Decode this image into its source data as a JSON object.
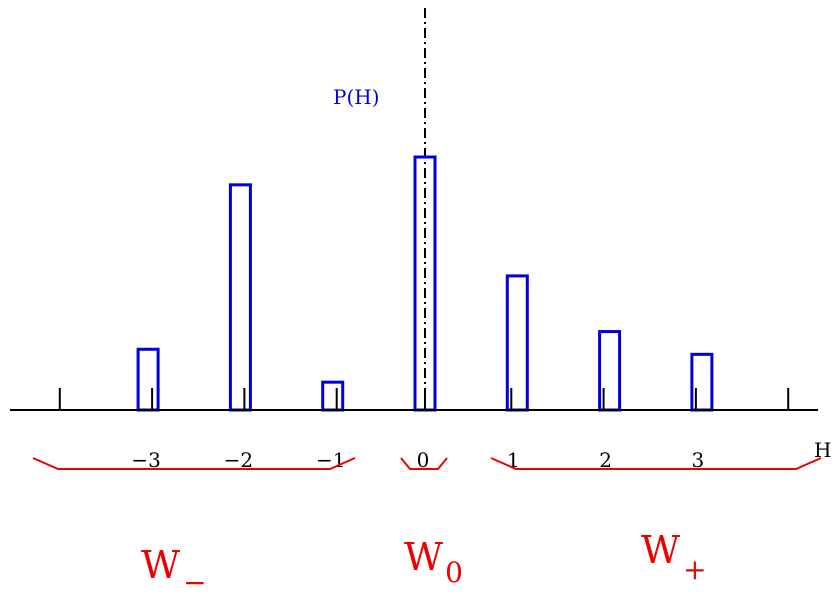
{
  "chart_data": {
    "type": "bar",
    "xlabel": "H",
    "ylabel": "P(H)",
    "categories": [
      "−3",
      "−2",
      "−1",
      "0",
      "1",
      "2",
      "3"
    ],
    "x": [
      -3,
      -2,
      -1,
      0,
      1,
      2,
      3
    ],
    "values": [
      0.24,
      0.89,
      0.11,
      1.0,
      0.53,
      0.31,
      0.22
    ],
    "xlim": [
      -4,
      4
    ],
    "ylim": [
      0,
      1
    ],
    "bar_color": "#0000dd",
    "axis_color": "#000000",
    "center_line": "dash-dot at H = 0"
  },
  "regions": [
    {
      "name": "W",
      "subscript": "−",
      "range": [
        -4,
        -1
      ]
    },
    {
      "name": "W",
      "subscript": "0",
      "range": [
        0,
        0
      ]
    },
    {
      "name": "W",
      "subscript": "+",
      "range": [
        1,
        4
      ]
    }
  ],
  "colors": {
    "bars": "#0000dd",
    "braces": "#ee0000",
    "axis": "#000000",
    "ylabel": "#0000dd"
  }
}
